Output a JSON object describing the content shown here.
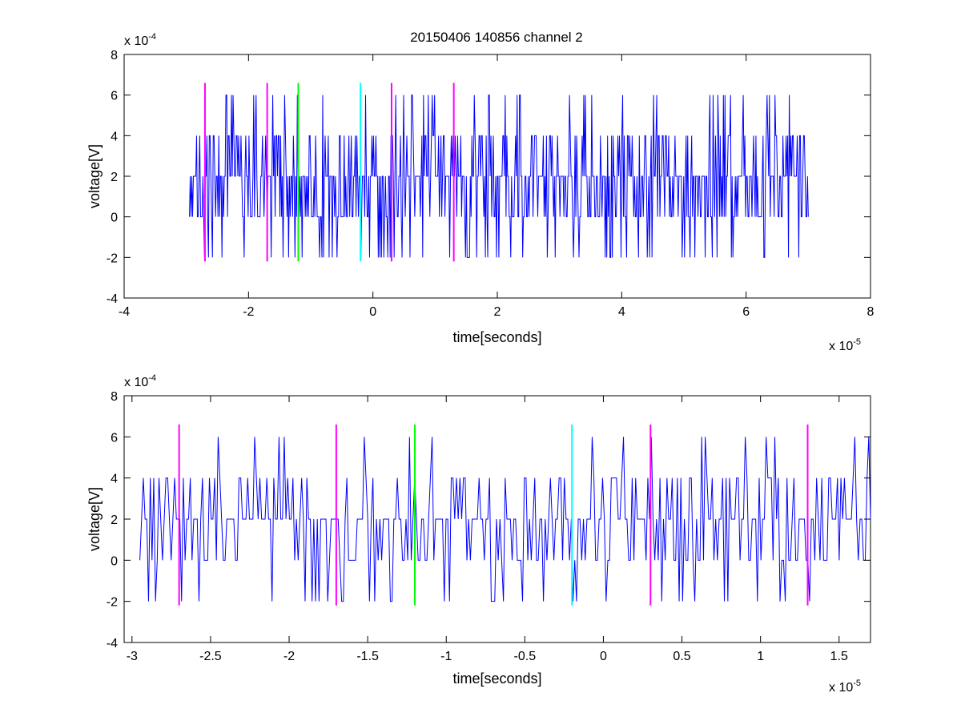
{
  "figure": {
    "title": "20150406 140856 channel 2",
    "colors": {
      "signal": "#0000ff",
      "marker_magenta": "#ff00ff",
      "marker_green": "#00ff00",
      "marker_cyan": "#00ffff",
      "axis": "#000000"
    }
  },
  "chart_data": [
    {
      "type": "line",
      "title": "20150406 140856 channel 2",
      "xlabel": "time[seconds]",
      "ylabel": "voltage[V]",
      "x_multiplier": "x 10",
      "x_exponent": "-5",
      "y_multiplier": "x 10",
      "y_exponent": "-4",
      "xlim": [
        -4,
        8
      ],
      "ylim": [
        -4,
        8
      ],
      "xticks": [
        -4,
        -2,
        0,
        2,
        4,
        6,
        8
      ],
      "xtick_labels": [
        "-4",
        "-2",
        "0",
        "2",
        "4",
        "6",
        "8"
      ],
      "yticks": [
        -4,
        -2,
        0,
        2,
        4,
        6,
        8
      ],
      "ytick_labels": [
        "-4",
        "-2",
        "0",
        "2",
        "4",
        "6",
        "8"
      ],
      "grid": false,
      "series": [
        {
          "color": "#0000ff",
          "x_start": -2.95,
          "x_end": 7.0,
          "level_values": [
            -2,
            0,
            2,
            4,
            6
          ],
          "dominant_level": 2
        }
      ],
      "markers": [
        {
          "x": -2.7,
          "color": "#ff00ff",
          "y_range": [
            -2.2,
            6.6
          ]
        },
        {
          "x": -1.7,
          "color": "#ff00ff",
          "y_range": [
            -2.2,
            6.6
          ]
        },
        {
          "x": -1.2,
          "color": "#00ff00",
          "y_range": [
            -2.2,
            6.6
          ]
        },
        {
          "x": -0.2,
          "color": "#00ffff",
          "y_range": [
            -2.2,
            6.6
          ]
        },
        {
          "x": 0.3,
          "color": "#ff00ff",
          "y_range": [
            -2.2,
            6.6
          ]
        },
        {
          "x": 1.3,
          "color": "#ff00ff",
          "y_range": [
            -2.2,
            6.6
          ]
        }
      ]
    },
    {
      "type": "line",
      "xlabel": "time[seconds]",
      "ylabel": "voltage[V]",
      "x_multiplier": "x 10",
      "x_exponent": "-5",
      "y_multiplier": "x 10",
      "y_exponent": "-4",
      "xlim": [
        -3.05,
        1.7
      ],
      "ylim": [
        -4,
        8
      ],
      "xticks": [
        -3,
        -2.5,
        -2,
        -1.5,
        -1,
        -0.5,
        0,
        0.5,
        1,
        1.5
      ],
      "xtick_labels": [
        "-3",
        "-2.5",
        "-2",
        "-1.5",
        "-1",
        "-0.5",
        "0",
        "0.5",
        "1",
        "1.5"
      ],
      "yticks": [
        -4,
        -2,
        0,
        2,
        4,
        6,
        8
      ],
      "ytick_labels": [
        "-4",
        "-2",
        "0",
        "2",
        "4",
        "6",
        "8"
      ],
      "grid": false,
      "series": [
        {
          "color": "#0000ff",
          "x_start": -2.95,
          "x_end": 1.7,
          "level_values": [
            -2,
            0,
            2,
            4,
            6
          ],
          "dominant_level": 2
        }
      ],
      "markers": [
        {
          "x": -2.7,
          "color": "#ff00ff",
          "y_range": [
            -2.2,
            6.6
          ]
        },
        {
          "x": -1.7,
          "color": "#ff00ff",
          "y_range": [
            -2.2,
            6.6
          ]
        },
        {
          "x": -1.2,
          "color": "#00ff00",
          "y_range": [
            -2.2,
            6.6
          ]
        },
        {
          "x": -0.2,
          "color": "#00ffff",
          "y_range": [
            -2.2,
            6.6
          ]
        },
        {
          "x": 0.3,
          "color": "#ff00ff",
          "y_range": [
            -2.2,
            6.6
          ]
        },
        {
          "x": 1.3,
          "color": "#ff00ff",
          "y_range": [
            -2.2,
            6.6
          ]
        }
      ]
    }
  ]
}
